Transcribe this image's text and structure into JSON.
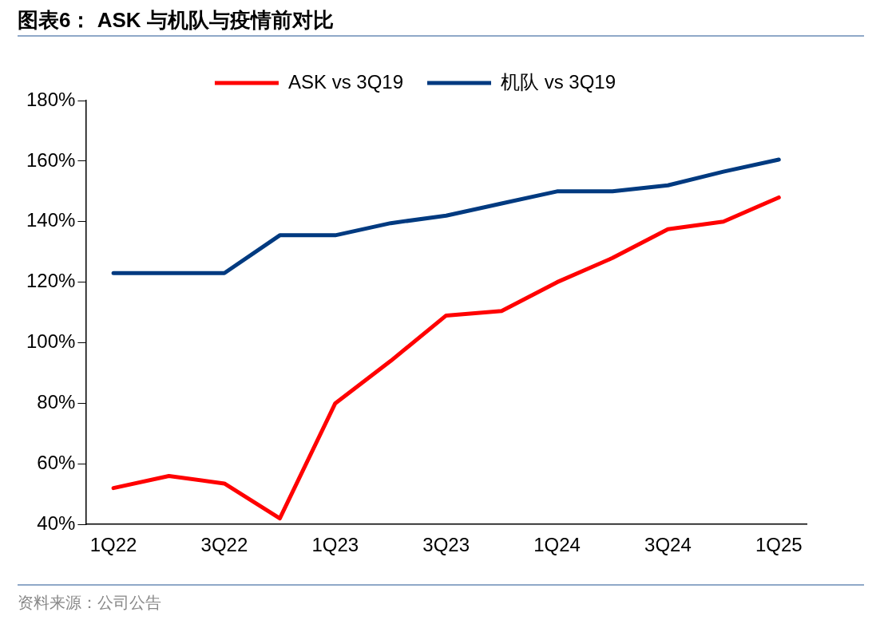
{
  "chart_data": {
    "type": "line",
    "title": "图表6： ASK 与机队与疫情前对比",
    "categories": [
      "1Q22",
      null,
      "3Q22",
      null,
      "1Q23",
      null,
      "3Q23",
      null,
      "1Q24",
      null,
      "3Q24",
      null,
      "1Q25"
    ],
    "series": [
      {
        "name": "ASK vs 3Q19",
        "color": "#ff0000",
        "values": [
          52,
          56,
          53.5,
          42,
          80,
          94,
          109,
          110.5,
          120,
          128,
          137.5,
          140,
          148
        ]
      },
      {
        "name": "机队 vs 3Q19",
        "color": "#003a80",
        "values": [
          123,
          123,
          123,
          135.5,
          135.5,
          139.5,
          142,
          146,
          150,
          150,
          152,
          156.5,
          160.5
        ]
      }
    ],
    "ylim": [
      40,
      180
    ],
    "yticks": [
      {
        "value": 40,
        "label": "40%"
      },
      {
        "value": 60,
        "label": "60%"
      },
      {
        "value": 80,
        "label": "80%"
      },
      {
        "value": 100,
        "label": "100%"
      },
      {
        "value": 120,
        "label": "120%"
      },
      {
        "value": 140,
        "label": "140%"
      },
      {
        "value": 160,
        "label": "160%"
      },
      {
        "value": 180,
        "label": "180%"
      }
    ],
    "grid": false,
    "legend": "top",
    "marker": "none",
    "line_style": "solid",
    "annotations": [
      "资料来源：公司公告"
    ]
  }
}
